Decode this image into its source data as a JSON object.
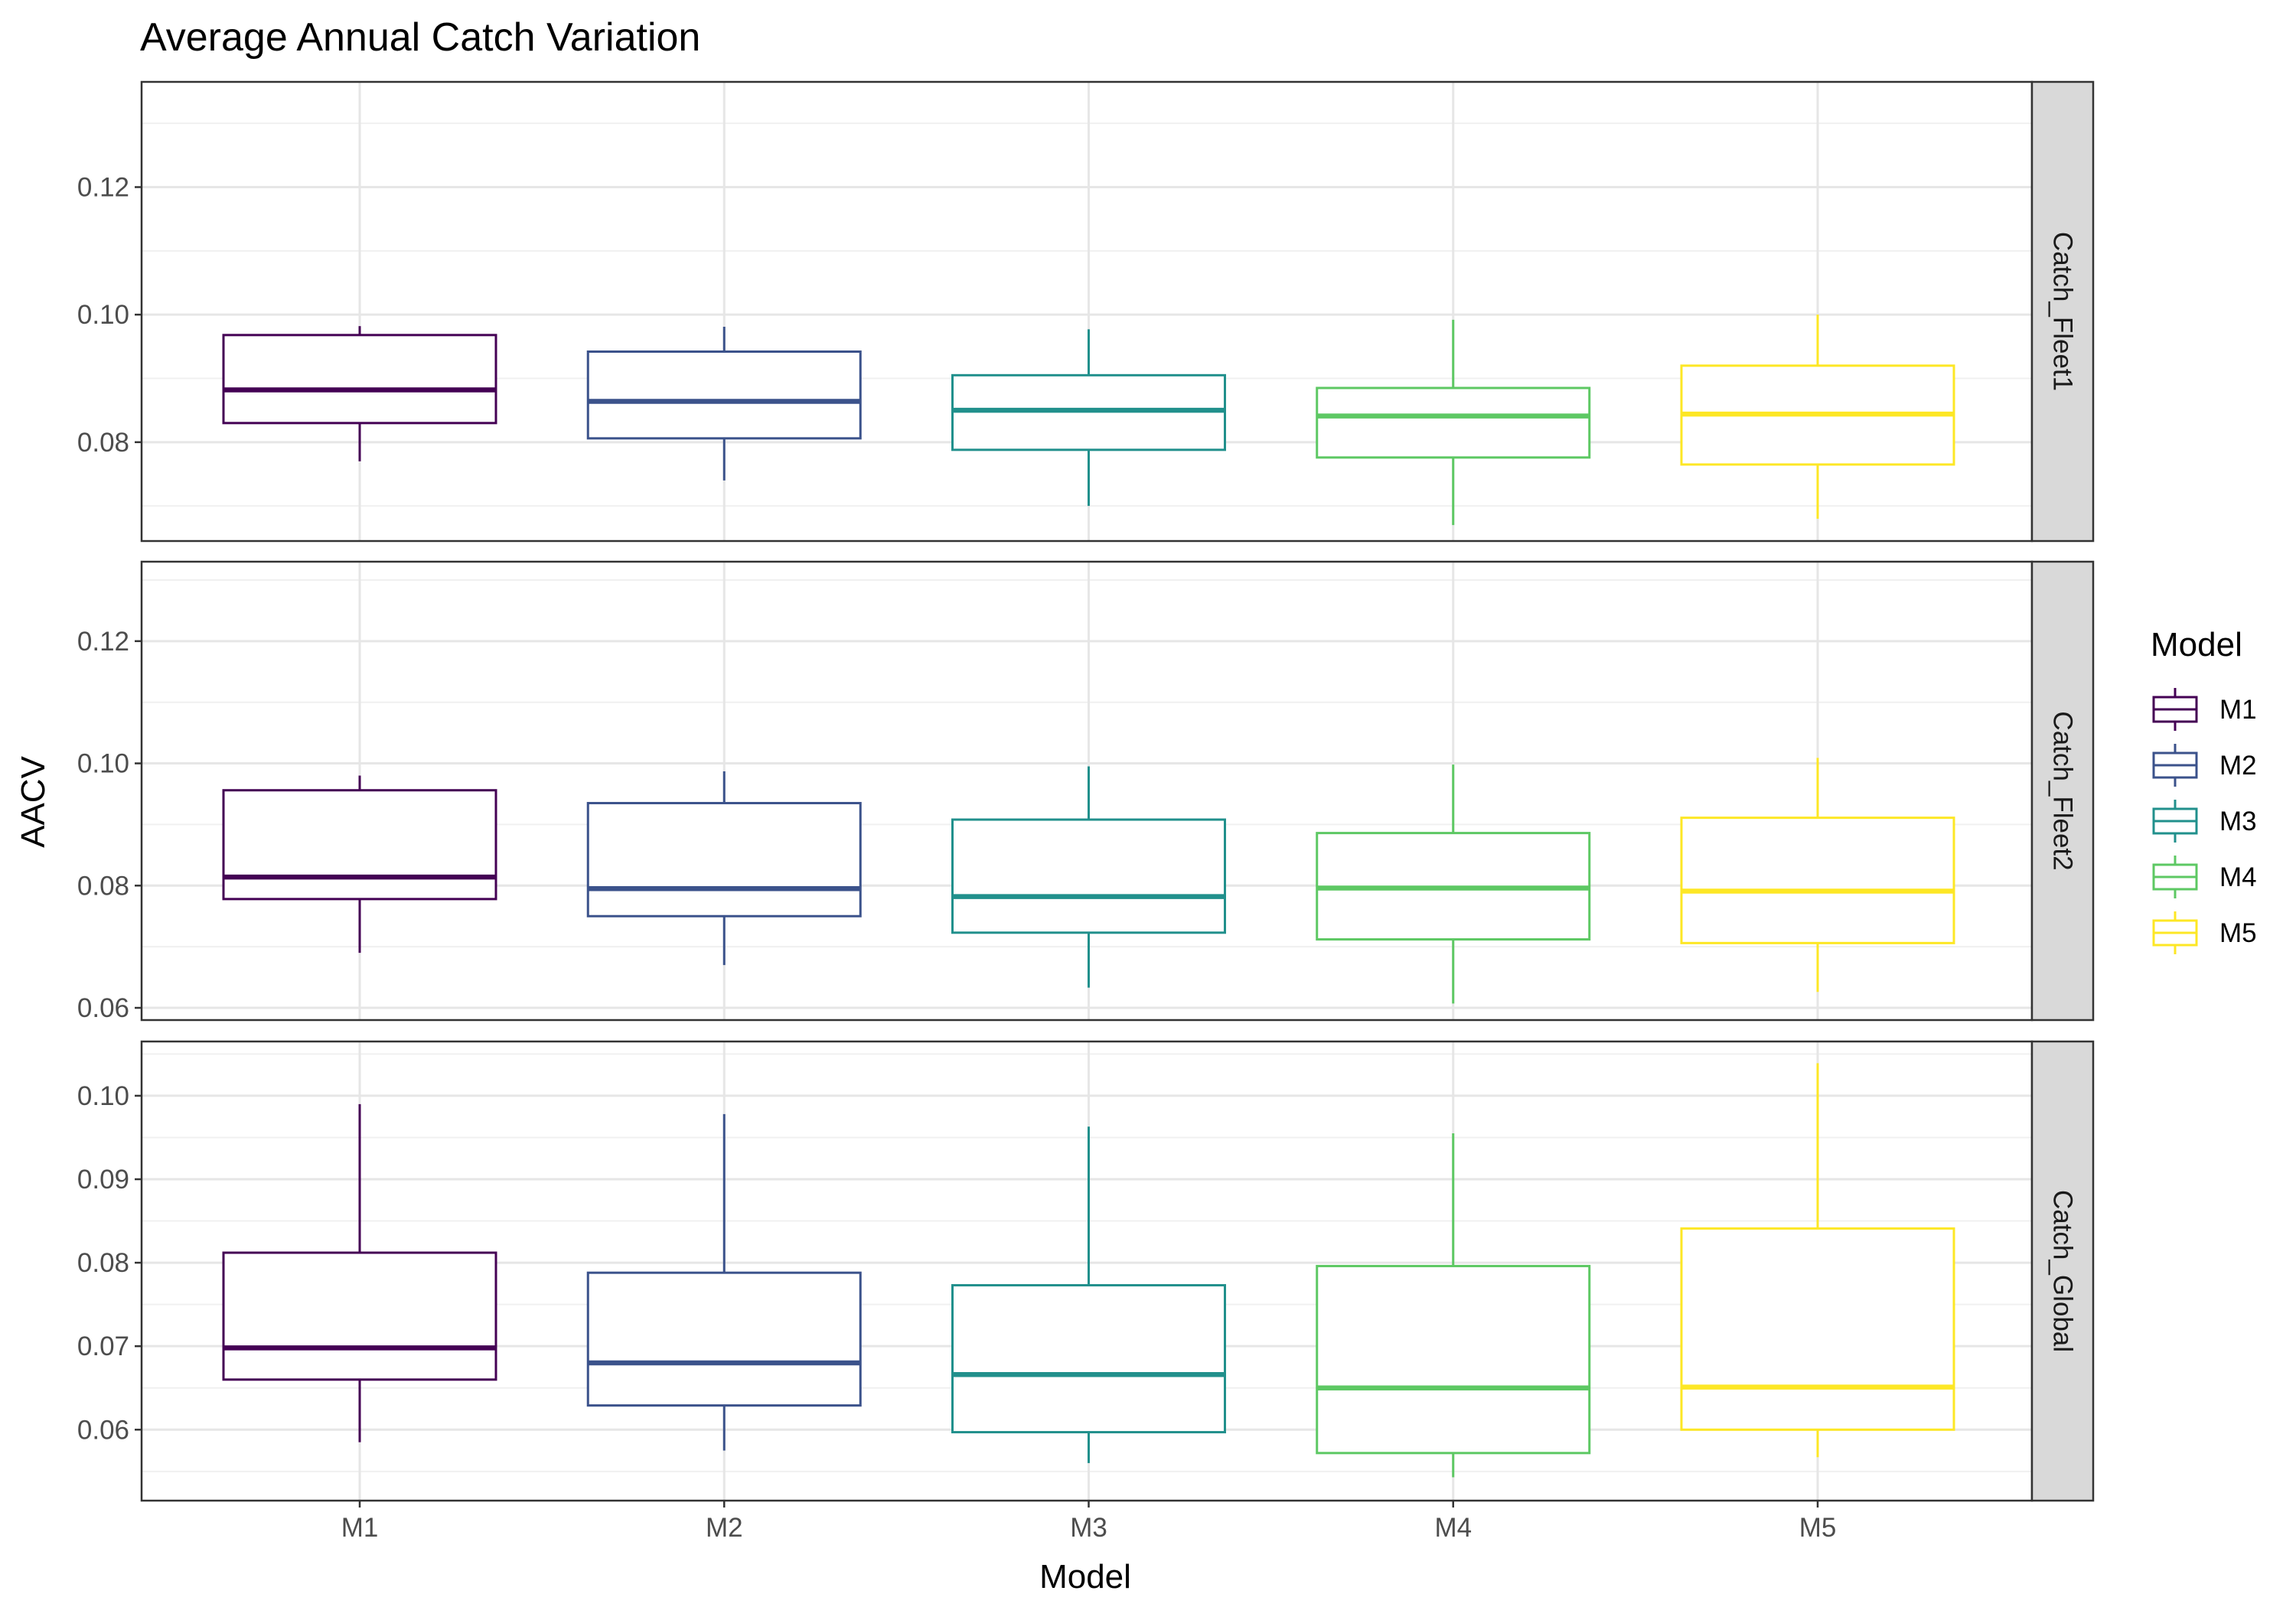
{
  "chart_data": {
    "type": "boxplot",
    "title": "Average Annual Catch Variation",
    "xlabel": "Model",
    "ylabel": "AACV",
    "categories": [
      "M1",
      "M2",
      "M3",
      "M4",
      "M5"
    ],
    "colors": {
      "M1": "#440154",
      "M2": "#3b528b",
      "M3": "#21908c",
      "M4": "#5dc863",
      "M5": "#fde725"
    },
    "legend": {
      "title": "Model",
      "entries": [
        "M1",
        "M2",
        "M3",
        "M4",
        "M5"
      ],
      "placement": "right"
    },
    "grid": true,
    "facets": [
      {
        "label": "Catch_Fleet1",
        "ylim": [
          0.0645,
          0.1365
        ],
        "yticks": [
          0.08,
          0.1,
          0.12
        ],
        "boxes": [
          {
            "model": "M1",
            "min": 0.077,
            "q1": 0.083,
            "median": 0.0882,
            "q3": 0.0968,
            "max": 0.0982
          },
          {
            "model": "M2",
            "min": 0.074,
            "q1": 0.0806,
            "median": 0.0864,
            "q3": 0.0942,
            "max": 0.0981
          },
          {
            "model": "M3",
            "min": 0.07,
            "q1": 0.0788,
            "median": 0.085,
            "q3": 0.0905,
            "max": 0.0977
          },
          {
            "model": "M4",
            "min": 0.067,
            "q1": 0.0776,
            "median": 0.0841,
            "q3": 0.0885,
            "max": 0.0992
          },
          {
            "model": "M5",
            "min": 0.068,
            "q1": 0.0765,
            "median": 0.0844,
            "q3": 0.092,
            "max": 0.1
          }
        ]
      },
      {
        "label": "Catch_Fleet2",
        "ylim": [
          0.058,
          0.133
        ],
        "yticks": [
          0.06,
          0.08,
          0.1,
          0.12
        ],
        "boxes": [
          {
            "model": "M1",
            "min": 0.069,
            "q1": 0.0778,
            "median": 0.0814,
            "q3": 0.0956,
            "max": 0.098
          },
          {
            "model": "M2",
            "min": 0.067,
            "q1": 0.075,
            "median": 0.0795,
            "q3": 0.0935,
            "max": 0.0987
          },
          {
            "model": "M3",
            "min": 0.0633,
            "q1": 0.0723,
            "median": 0.0782,
            "q3": 0.0908,
            "max": 0.0995
          },
          {
            "model": "M4",
            "min": 0.0607,
            "q1": 0.0712,
            "median": 0.0796,
            "q3": 0.0886,
            "max": 0.0998
          },
          {
            "model": "M5",
            "min": 0.0626,
            "q1": 0.0706,
            "median": 0.0791,
            "q3": 0.0911,
            "max": 0.1009
          }
        ]
      },
      {
        "label": "Catch_Global",
        "ylim": [
          0.0515,
          0.1065
        ],
        "yticks": [
          0.06,
          0.07,
          0.08,
          0.09,
          0.1
        ],
        "boxes": [
          {
            "model": "M1",
            "min": 0.0585,
            "q1": 0.066,
            "median": 0.0698,
            "q3": 0.0812,
            "max": 0.099
          },
          {
            "model": "M2",
            "min": 0.0575,
            "q1": 0.0629,
            "median": 0.068,
            "q3": 0.0788,
            "max": 0.0978
          },
          {
            "model": "M3",
            "min": 0.056,
            "q1": 0.0597,
            "median": 0.0666,
            "q3": 0.0773,
            "max": 0.0963
          },
          {
            "model": "M4",
            "min": 0.0543,
            "q1": 0.0572,
            "median": 0.065,
            "q3": 0.0796,
            "max": 0.0955
          },
          {
            "model": "M5",
            "min": 0.0567,
            "q1": 0.06,
            "median": 0.0651,
            "q3": 0.0841,
            "max": 0.1039
          }
        ]
      }
    ]
  }
}
